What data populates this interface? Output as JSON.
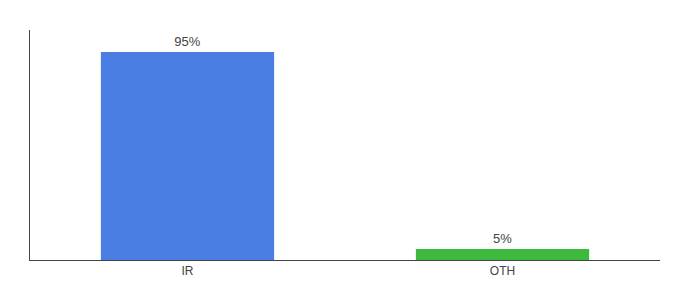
{
  "chart_data": {
    "type": "bar",
    "categories": [
      "IR",
      "OTH"
    ],
    "values": [
      95,
      5
    ],
    "value_labels": [
      "95%",
      "5%"
    ],
    "colors": [
      "#4a7ee3",
      "#3dba3d"
    ],
    "ylim": [
      0,
      105
    ],
    "data_labels": true,
    "grid": false,
    "tick_labels": "x"
  }
}
